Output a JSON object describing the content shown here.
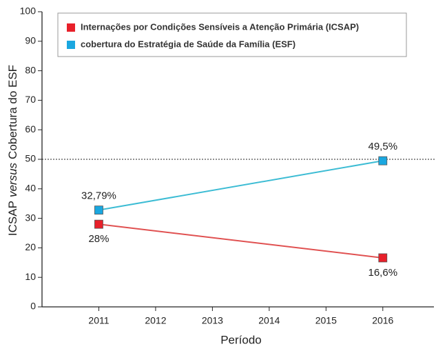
{
  "chart_data": {
    "type": "line",
    "ylabel": [
      {
        "text": "ICSAP"
      },
      {
        "text": "versus",
        "italic": true
      },
      {
        "text": "Cobertura do ESF"
      }
    ],
    "xlabel": "Período",
    "x": [
      2011,
      2016
    ],
    "series": [
      {
        "name": "Internações por Condições Sensíveis a Atenção Primária (ICSAP)",
        "color": "#e8202a",
        "line_color": "#e05050",
        "values": [
          28,
          16.6
        ],
        "value_labels": [
          "28%",
          "16,6%"
        ],
        "label_position": "below"
      },
      {
        "name": "cobertura do Estratégia de Saúde da Família (ESF)",
        "color": "#1aa7e0",
        "line_color": "#3cbcd4",
        "values": [
          32.79,
          49.5
        ],
        "value_labels": [
          "32,79%",
          "49,5%"
        ],
        "label_position": "above"
      }
    ],
    "xlim": [
      2010,
      2016.9
    ],
    "xticks": [
      2011,
      2012,
      2013,
      2014,
      2015,
      2016
    ],
    "ylim": [
      0,
      100
    ],
    "yticks": [
      0,
      10,
      20,
      30,
      40,
      50,
      60,
      70,
      80,
      90,
      100
    ],
    "reference_line": 50,
    "legend": "top-left"
  }
}
